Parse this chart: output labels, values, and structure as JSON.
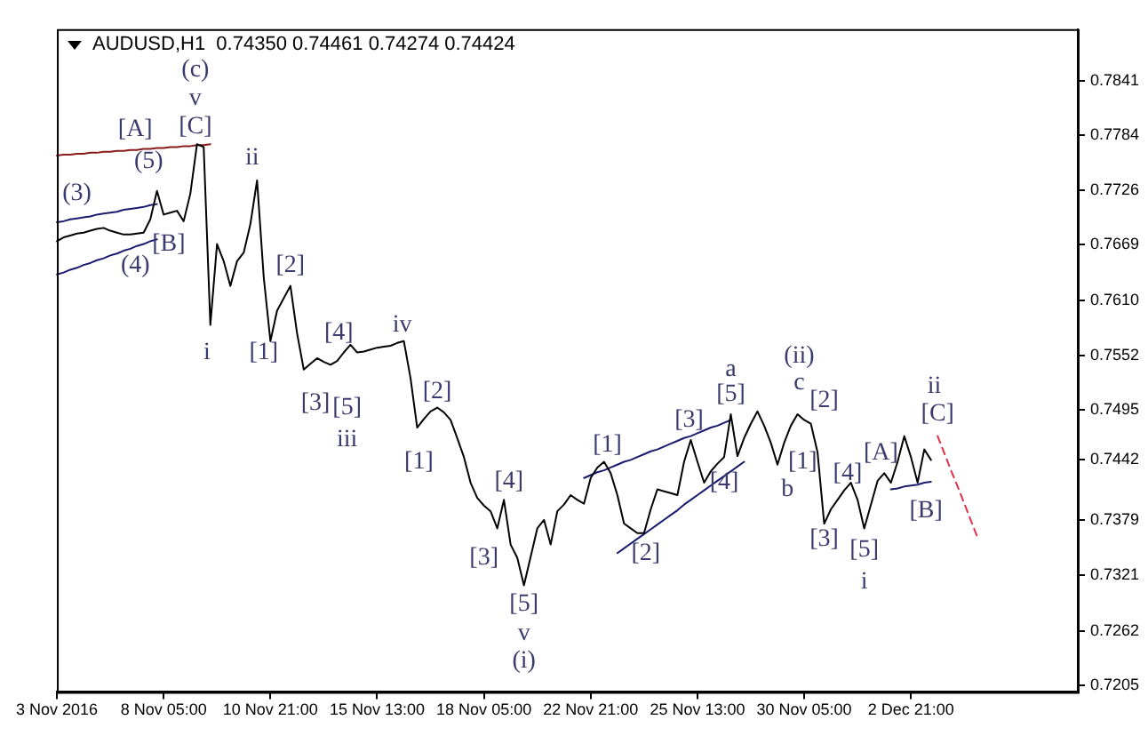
{
  "chart_data": {
    "type": "line",
    "title": "AUDUSD,H1  0.74350 0.74461 0.74274 0.74424",
    "categories": [
      "3 Nov 2016",
      null,
      null,
      null,
      null,
      null,
      null,
      null,
      null,
      null,
      null,
      null,
      null,
      null,
      null,
      null,
      "8 Nov 05:00",
      null,
      null,
      null,
      null,
      null,
      null,
      null,
      null,
      null,
      null,
      null,
      null,
      null,
      null,
      null,
      "10 Nov 21:00",
      null,
      null,
      null,
      null,
      null,
      null,
      null,
      null,
      null,
      null,
      null,
      null,
      null,
      null,
      null,
      "15 Nov 13:00",
      null,
      null,
      null,
      null,
      null,
      null,
      null,
      null,
      null,
      null,
      null,
      null,
      null,
      null,
      null,
      "18 Nov 05:00",
      null,
      null,
      null,
      null,
      null,
      null,
      null,
      null,
      null,
      null,
      null,
      null,
      null,
      null,
      null,
      "22 Nov 21:00",
      null,
      null,
      null,
      null,
      null,
      null,
      null,
      null,
      null,
      null,
      null,
      null,
      null,
      null,
      null,
      "25 Nov 13:00",
      null,
      null,
      null,
      null,
      null,
      null,
      null,
      null,
      null,
      null,
      null,
      null,
      null,
      null,
      null,
      "30 Nov 05:00",
      null,
      null,
      null,
      null,
      null,
      null,
      null,
      null,
      null,
      null,
      null,
      null,
      null,
      null,
      null,
      "2 Dec 21:00",
      null,
      null,
      null,
      null,
      null,
      null,
      null,
      null,
      null,
      null,
      null,
      null,
      null,
      null,
      null,
      null,
      null,
      null,
      null,
      null,
      null,
      null,
      null,
      null,
      null
    ],
    "ylim": [
      0.7198,
      0.7895
    ],
    "yticks": [
      0.7205,
      0.7262,
      0.7321,
      0.7379,
      {
        "value": 0.74424,
        "label": "0.7442"
      },
      0.7495,
      0.7552,
      {
        "value": 0.761,
        "label": "0.7610"
      },
      0.7669,
      0.7726,
      0.7784,
      0.7841
    ],
    "series": [
      {
        "color": "#000000",
        "values": [
          0.7672,
          0.7676,
          0.7678,
          0.768,
          0.7681,
          0.7683,
          0.7685,
          0.7686,
          0.7683,
          0.7681,
          0.7679,
          0.7679,
          0.768,
          0.7681,
          0.7695,
          0.7725,
          0.77,
          0.7702,
          0.7704,
          0.7693,
          0.7722,
          0.7774,
          0.7771,
          0.7584,
          0.7669,
          0.7651,
          0.7625,
          0.7651,
          0.766,
          0.769,
          0.7736,
          0.7634,
          0.7567,
          0.7599,
          0.7612,
          0.7625,
          0.7575,
          0.7537,
          0.7543,
          0.7549,
          0.7545,
          0.7542,
          0.7546,
          0.7555,
          0.7563,
          0.7555,
          0.7556,
          0.7558,
          0.756,
          0.7561,
          0.7562,
          0.7565,
          0.7567,
          0.7528,
          0.7476,
          0.7485,
          0.7493,
          0.7497,
          0.7492,
          0.7484,
          0.7465,
          0.7445,
          0.7418,
          0.7402,
          0.7394,
          0.7388,
          0.737,
          0.74,
          0.7353,
          0.7339,
          0.731,
          0.734,
          0.737,
          0.7379,
          0.7353,
          0.7388,
          0.7395,
          0.7405,
          0.74,
          0.7396,
          0.7423,
          0.7434,
          0.744,
          0.7428,
          0.7405,
          0.7375,
          0.737,
          0.7365,
          0.7365,
          0.739,
          0.7411,
          0.7409,
          0.7407,
          0.7405,
          0.744,
          0.7463,
          0.744,
          0.7418,
          0.743,
          0.7438,
          0.7445,
          0.749,
          0.7446,
          0.7465,
          0.748,
          0.7493,
          0.7478,
          0.746,
          0.7437,
          0.746,
          0.7478,
          0.749,
          0.7484,
          0.748,
          0.745,
          0.7375,
          0.739,
          0.74,
          0.741,
          0.7418,
          0.74,
          0.737,
          0.7395,
          0.742,
          0.7428,
          0.7418,
          0.744,
          0.7467,
          0.7445,
          0.7418,
          0.7453,
          0.7442,
          null,
          null,
          null,
          null,
          null,
          null,
          null,
          null,
          null,
          null,
          null,
          null,
          null,
          null,
          null,
          null,
          null,
          null,
          null,
          null,
          null,
          null
        ]
      },
      {
        "color": "#8b1a1a",
        "values": [
          0.7762,
          0.7763,
          0.7763,
          0.7764,
          0.7764,
          0.7765,
          0.7765,
          0.7766,
          0.7766,
          0.7767,
          0.7767,
          0.7768,
          0.7768,
          0.7769,
          0.7769,
          0.777,
          0.777,
          0.7771,
          0.7771,
          0.7772,
          0.7772,
          0.7773,
          0.7773,
          0.7774,
          null,
          null,
          null,
          null,
          null,
          null,
          null,
          null,
          null,
          null,
          null,
          null,
          null,
          null,
          null,
          null,
          null,
          null,
          null,
          null,
          null,
          null,
          null,
          null,
          null,
          null,
          null,
          null,
          null,
          null,
          null,
          null,
          null,
          null,
          null,
          null,
          null,
          null,
          null,
          null,
          null,
          null,
          null,
          null,
          null,
          null,
          null,
          null,
          null,
          null,
          null,
          null,
          null,
          null,
          null,
          null,
          null,
          null,
          null,
          null,
          null,
          null,
          null,
          null,
          null,
          null,
          null,
          null,
          null,
          null,
          null,
          null,
          null,
          null,
          null,
          null,
          null,
          null,
          null,
          null,
          null,
          null,
          null,
          null,
          null,
          null,
          null,
          null,
          null,
          null,
          null,
          null,
          null,
          null,
          null,
          null,
          null,
          null,
          null,
          null,
          null,
          null,
          null,
          null,
          null,
          null,
          null,
          null,
          null,
          null,
          null,
          null,
          null,
          null,
          null,
          null,
          null,
          null,
          null,
          null,
          null,
          null,
          null,
          null,
          null,
          null,
          null,
          null,
          null,
          null
        ]
      },
      {
        "color": "#1a1a6e",
        "values": [
          0.7692,
          0.7693,
          0.7695,
          0.7696,
          0.7697,
          0.7698,
          0.77,
          0.7701,
          0.7702,
          0.7703,
          0.7705,
          0.7706,
          0.7707,
          0.7708,
          0.771,
          0.7711,
          null,
          null,
          null,
          null,
          null,
          null,
          null,
          null,
          null,
          null,
          null,
          null,
          null,
          null,
          null,
          null,
          null,
          null,
          null,
          null,
          null,
          null,
          null,
          null,
          null,
          null,
          null,
          null,
          null,
          null,
          null,
          null,
          null,
          null,
          null,
          null,
          null,
          null,
          null,
          null,
          null,
          null,
          null,
          null,
          null,
          null,
          null,
          null,
          null,
          null,
          null,
          null,
          null,
          null,
          null,
          null,
          null,
          null,
          null,
          null,
          null,
          null,
          null,
          null,
          null,
          null,
          null,
          null,
          null,
          null,
          null,
          null,
          null,
          null,
          null,
          null,
          null,
          null,
          null,
          null,
          null,
          null,
          null,
          null,
          null,
          null,
          null,
          null,
          null,
          null,
          null,
          null,
          null,
          null,
          null,
          null,
          null,
          null,
          null,
          null,
          null,
          null,
          null,
          null,
          null,
          null,
          null,
          null,
          null,
          null,
          null,
          null,
          null,
          null,
          null,
          null,
          null,
          null,
          null,
          null,
          null,
          null,
          null,
          null,
          null,
          null,
          null,
          null,
          null,
          null,
          null,
          null,
          null,
          null,
          null,
          null,
          null,
          null
        ]
      },
      {
        "color": "#1a1a6e",
        "values": [
          0.7637,
          0.7639,
          0.7642,
          0.7644,
          0.7647,
          0.7649,
          0.7652,
          0.7654,
          0.7657,
          0.7659,
          0.7662,
          0.7664,
          0.7667,
          0.7669,
          0.7672,
          0.7674,
          null,
          null,
          null,
          null,
          null,
          null,
          null,
          null,
          null,
          null,
          null,
          null,
          null,
          null,
          null,
          null,
          null,
          null,
          null,
          null,
          null,
          null,
          null,
          null,
          null,
          null,
          null,
          null,
          null,
          null,
          null,
          null,
          null,
          null,
          null,
          null,
          null,
          null,
          null,
          null,
          null,
          null,
          null,
          null,
          null,
          null,
          null,
          null,
          null,
          null,
          null,
          null,
          null,
          null,
          null,
          null,
          null,
          null,
          null,
          null,
          null,
          null,
          null,
          null,
          null,
          null,
          null,
          null,
          null,
          null,
          null,
          null,
          null,
          null,
          null,
          null,
          null,
          null,
          null,
          null,
          null,
          null,
          null,
          null,
          null,
          null,
          null,
          null,
          null,
          null,
          null,
          null,
          null,
          null,
          null,
          null,
          null,
          null,
          null,
          null,
          null,
          null,
          null,
          null,
          null,
          null,
          null,
          null,
          null,
          null,
          null,
          null,
          null,
          null,
          null,
          null,
          null,
          null,
          null,
          null,
          null,
          null,
          null,
          null,
          null,
          null,
          null,
          null,
          null,
          null,
          null,
          null,
          null,
          null,
          null,
          null,
          null,
          null
        ]
      },
      {
        "color": "#1a1a6e",
        "values": [
          null,
          null,
          null,
          null,
          null,
          null,
          null,
          null,
          null,
          null,
          null,
          null,
          null,
          null,
          null,
          null,
          null,
          null,
          null,
          null,
          null,
          null,
          null,
          null,
          null,
          null,
          null,
          null,
          null,
          null,
          null,
          null,
          null,
          null,
          null,
          null,
          null,
          null,
          null,
          null,
          null,
          null,
          null,
          null,
          null,
          null,
          null,
          null,
          null,
          null,
          null,
          null,
          null,
          null,
          null,
          null,
          null,
          null,
          null,
          null,
          null,
          null,
          null,
          null,
          null,
          null,
          null,
          null,
          null,
          null,
          null,
          null,
          null,
          null,
          null,
          null,
          null,
          null,
          null,
          0.7423,
          0.7426,
          0.7429,
          0.7431,
          0.7434,
          0.7437,
          0.744,
          0.7442,
          0.7445,
          0.7448,
          0.7451,
          0.7453,
          0.7456,
          0.7459,
          0.7462,
          0.7465,
          0.7467,
          0.747,
          0.7473,
          0.7476,
          0.7478,
          0.7481,
          0.7484,
          null,
          null,
          null,
          null,
          null,
          null,
          null,
          null,
          null,
          null,
          null,
          null,
          null,
          null,
          null,
          null,
          null,
          null,
          null,
          null,
          null,
          null,
          null,
          null,
          null,
          null,
          null,
          null,
          null,
          null,
          null,
          null,
          null,
          null,
          null,
          null,
          null,
          null,
          null,
          null,
          null,
          null,
          null,
          null,
          null,
          null,
          null,
          null,
          null,
          null,
          null,
          null
        ]
      },
      {
        "color": "#1a1a6e",
        "values": [
          null,
          null,
          null,
          null,
          null,
          null,
          null,
          null,
          null,
          null,
          null,
          null,
          null,
          null,
          null,
          null,
          null,
          null,
          null,
          null,
          null,
          null,
          null,
          null,
          null,
          null,
          null,
          null,
          null,
          null,
          null,
          null,
          null,
          null,
          null,
          null,
          null,
          null,
          null,
          null,
          null,
          null,
          null,
          null,
          null,
          null,
          null,
          null,
          null,
          null,
          null,
          null,
          null,
          null,
          null,
          null,
          null,
          null,
          null,
          null,
          null,
          null,
          null,
          null,
          null,
          null,
          null,
          null,
          null,
          null,
          null,
          null,
          null,
          null,
          null,
          null,
          null,
          null,
          null,
          null,
          null,
          null,
          null,
          null,
          0.7344,
          0.7349,
          0.7354,
          0.7359,
          0.7364,
          0.7369,
          0.7374,
          0.7379,
          0.7384,
          0.7389,
          0.7395,
          0.74,
          0.7405,
          0.741,
          0.7415,
          0.742,
          0.7425,
          0.743,
          0.7435,
          0.744,
          null,
          null,
          null,
          null,
          null,
          null,
          null,
          null,
          null,
          null,
          null,
          null,
          null,
          null,
          null,
          null,
          null,
          null,
          null,
          null,
          null,
          null,
          null,
          null,
          null,
          null,
          null,
          null,
          null,
          null,
          null,
          null,
          null,
          null,
          null,
          null,
          null,
          null,
          null,
          null,
          null,
          null,
          null,
          null,
          null,
          null,
          null,
          null,
          null,
          null
        ]
      },
      {
        "color": "#1a1a6e",
        "values": [
          null,
          null,
          null,
          null,
          null,
          null,
          null,
          null,
          null,
          null,
          null,
          null,
          null,
          null,
          null,
          null,
          null,
          null,
          null,
          null,
          null,
          null,
          null,
          null,
          null,
          null,
          null,
          null,
          null,
          null,
          null,
          null,
          null,
          null,
          null,
          null,
          null,
          null,
          null,
          null,
          null,
          null,
          null,
          null,
          null,
          null,
          null,
          null,
          null,
          null,
          null,
          null,
          null,
          null,
          null,
          null,
          null,
          null,
          null,
          null,
          null,
          null,
          null,
          null,
          null,
          null,
          null,
          null,
          null,
          null,
          null,
          null,
          null,
          null,
          null,
          null,
          null,
          null,
          null,
          null,
          null,
          null,
          null,
          null,
          null,
          null,
          null,
          null,
          null,
          null,
          null,
          null,
          null,
          null,
          null,
          null,
          null,
          null,
          null,
          null,
          null,
          null,
          null,
          null,
          null,
          null,
          null,
          null,
          null,
          null,
          null,
          null,
          null,
          null,
          null,
          null,
          null,
          null,
          null,
          null,
          null,
          null,
          null,
          null,
          null,
          0.7411,
          0.7412,
          0.7414,
          0.7415,
          0.7416,
          0.7418,
          0.7419,
          null,
          null,
          null,
          null,
          null,
          null,
          null,
          null,
          null,
          null,
          null,
          null,
          null,
          null,
          null,
          null,
          null,
          null,
          null,
          null,
          null,
          null
        ]
      },
      {
        "color": "#e0304a",
        "line_style": "dashed",
        "values": [
          null,
          null,
          null,
          null,
          null,
          null,
          null,
          null,
          null,
          null,
          null,
          null,
          null,
          null,
          null,
          null,
          null,
          null,
          null,
          null,
          null,
          null,
          null,
          null,
          null,
          null,
          null,
          null,
          null,
          null,
          null,
          null,
          null,
          null,
          null,
          null,
          null,
          null,
          null,
          null,
          null,
          null,
          null,
          null,
          null,
          null,
          null,
          null,
          null,
          null,
          null,
          null,
          null,
          null,
          null,
          null,
          null,
          null,
          null,
          null,
          null,
          null,
          null,
          null,
          null,
          null,
          null,
          null,
          null,
          null,
          null,
          null,
          null,
          null,
          null,
          null,
          null,
          null,
          null,
          null,
          null,
          null,
          null,
          null,
          null,
          null,
          null,
          null,
          null,
          null,
          null,
          null,
          null,
          null,
          null,
          null,
          null,
          null,
          null,
          null,
          null,
          null,
          null,
          null,
          null,
          null,
          null,
          null,
          null,
          null,
          null,
          null,
          null,
          null,
          null,
          null,
          null,
          null,
          null,
          null,
          null,
          null,
          null,
          null,
          null,
          null,
          null,
          null,
          null,
          null,
          null,
          null,
          0.7467,
          0.7449,
          0.7431,
          0.7414,
          0.7396,
          0.7378,
          0.736,
          null,
          null,
          null,
          null,
          null,
          null,
          null,
          null,
          null,
          null,
          null,
          null,
          null,
          null,
          null
        ]
      }
    ],
    "annotations": [
      "(c)",
      "v",
      "[C]",
      "[A]",
      "(5)",
      "(3)",
      "[B]",
      "(4)",
      "ii",
      "i",
      "[2]",
      "[1]",
      "[4]",
      "iv",
      "[3]",
      "[5]",
      "iii",
      "[2]",
      "[1]",
      "[4]",
      "[3]",
      "[5]",
      "v",
      "(i)",
      "[1]",
      "[2]",
      "[3]",
      "[4]",
      "[5]",
      "a",
      "(ii)",
      "c",
      "[2]",
      "[1]",
      "b",
      "[4]",
      "[A]",
      "[3]",
      "[5]",
      "i",
      "ii",
      "[C]",
      "[B]"
    ]
  }
}
